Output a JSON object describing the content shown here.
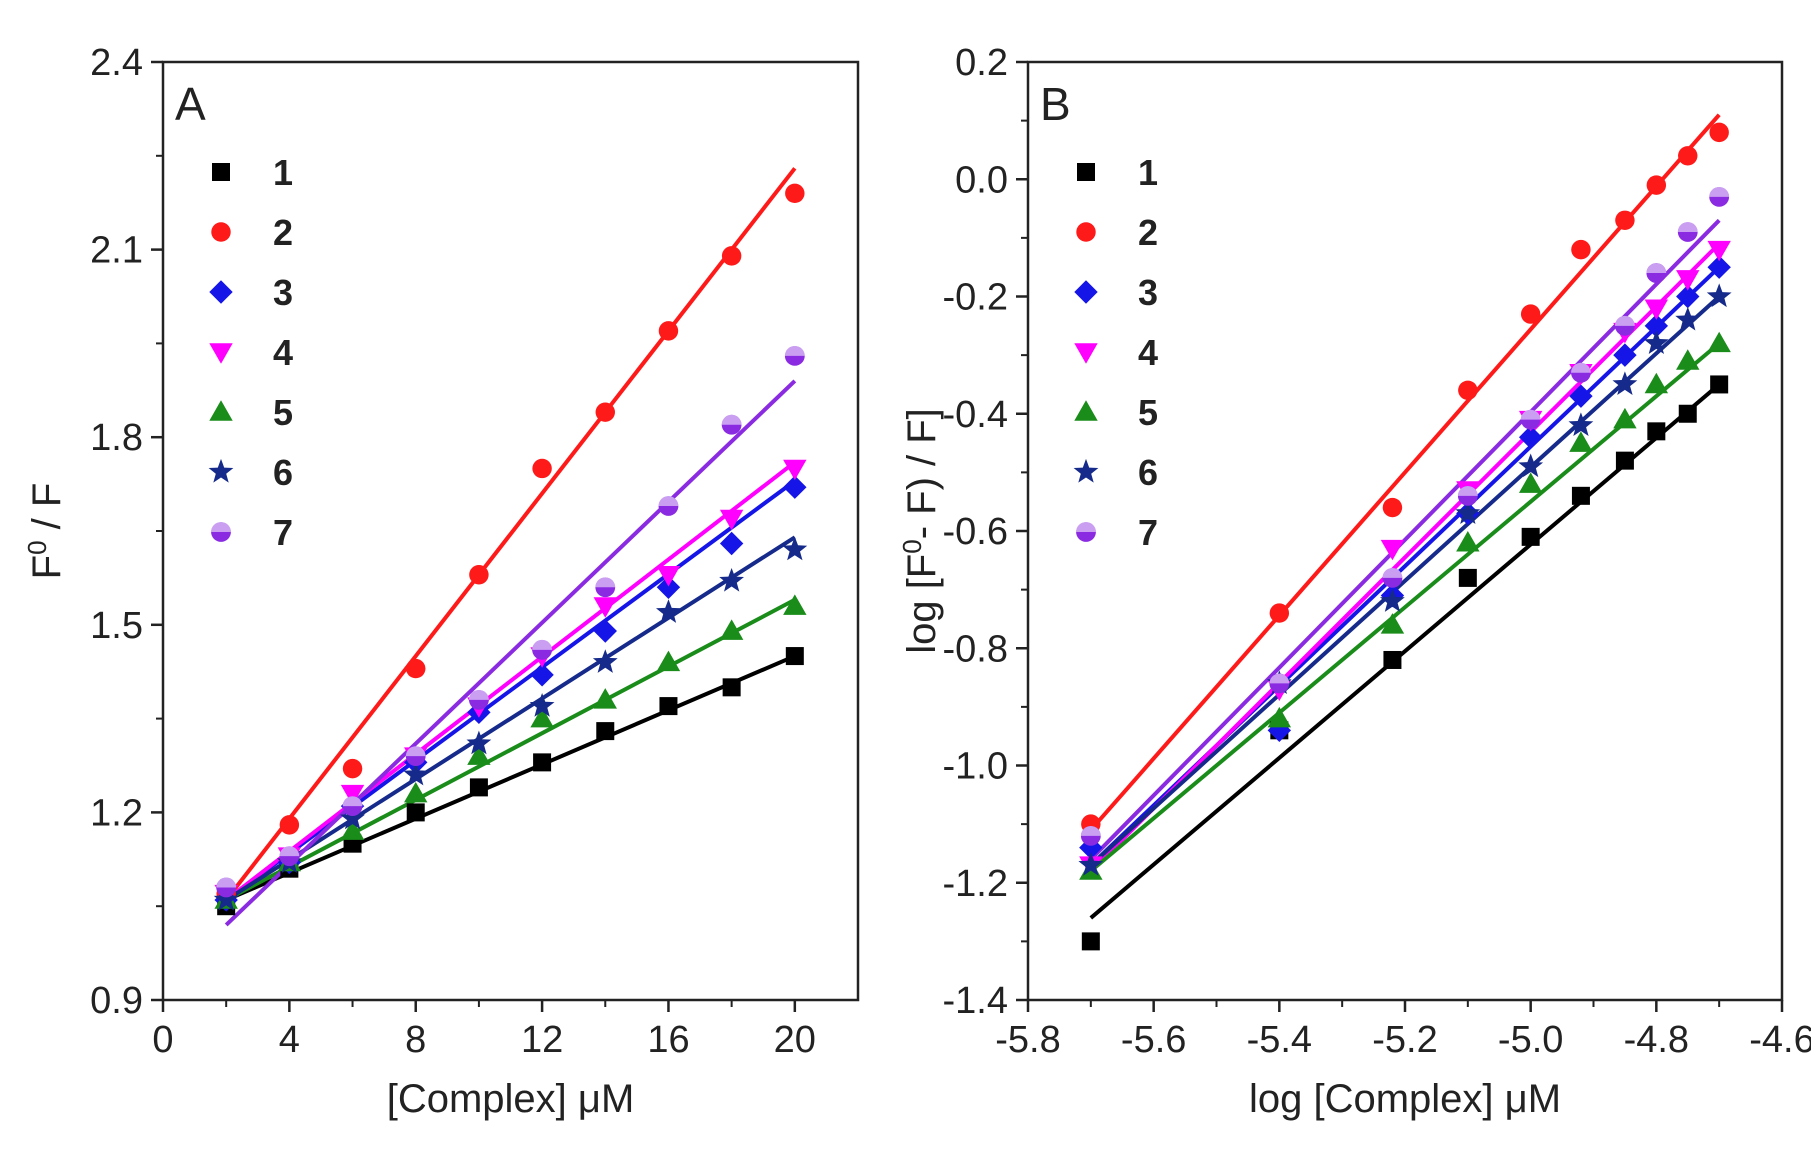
{
  "colors": {
    "1": "#000000",
    "2": "#ff1a1a",
    "3": "#1515e8",
    "4": "#ff00ff",
    "5": "#1a8c1a",
    "6": "#152a8a",
    "7": "#8a2be2"
  },
  "chart_data": [
    {
      "type": "scatter",
      "panel": "A",
      "xlabel": "[Complex] μM",
      "ylabel_main": "F",
      "ylabel_sup": "0",
      "ylabel_tail": " / F",
      "xlim": [
        0,
        22
      ],
      "ylim": [
        0.9,
        2.4
      ],
      "xticks": [
        0,
        4,
        8,
        12,
        16,
        20
      ],
      "yticks": [
        0.9,
        1.2,
        1.5,
        1.8,
        2.1,
        2.4
      ],
      "ytick_labels": [
        "0.9",
        "1.2",
        "1.5",
        "1.8",
        "2.1",
        "2.4"
      ],
      "grid": false,
      "legend_position": "top-left",
      "x": [
        2,
        4,
        6,
        8,
        10,
        12,
        14,
        16,
        18,
        20
      ],
      "series": [
        {
          "name": "1",
          "marker": "square",
          "values": [
            1.05,
            1.11,
            1.15,
            1.2,
            1.24,
            1.28,
            1.33,
            1.37,
            1.4,
            1.45
          ],
          "fit": [
            1.06,
            1.45
          ]
        },
        {
          "name": "2",
          "marker": "circle",
          "values": [
            1.07,
            1.18,
            1.27,
            1.43,
            1.58,
            1.75,
            1.84,
            1.97,
            2.09,
            2.19
          ],
          "fit": [
            1.06,
            2.23
          ]
        },
        {
          "name": "3",
          "marker": "diamond",
          "values": [
            1.06,
            1.12,
            1.21,
            1.28,
            1.36,
            1.42,
            1.49,
            1.56,
            1.63,
            1.72
          ],
          "fit": [
            1.06,
            1.73
          ]
        },
        {
          "name": "4",
          "marker": "triangle-down",
          "values": [
            1.07,
            1.13,
            1.23,
            1.29,
            1.37,
            1.45,
            1.53,
            1.58,
            1.67,
            1.75
          ],
          "fit": [
            1.06,
            1.76
          ]
        },
        {
          "name": "5",
          "marker": "triangle-up",
          "values": [
            1.06,
            1.12,
            1.17,
            1.23,
            1.29,
            1.35,
            1.38,
            1.44,
            1.49,
            1.53
          ],
          "fit": [
            1.06,
            1.54
          ]
        },
        {
          "name": "6",
          "marker": "star",
          "values": [
            1.06,
            1.12,
            1.19,
            1.26,
            1.31,
            1.37,
            1.44,
            1.52,
            1.57,
            1.62
          ],
          "fit": [
            1.06,
            1.64
          ]
        },
        {
          "name": "7",
          "marker": "sphere",
          "values": [
            1.08,
            1.13,
            1.21,
            1.29,
            1.38,
            1.46,
            1.56,
            1.69,
            1.82,
            1.93
          ],
          "fit": [
            1.02,
            1.89
          ]
        }
      ]
    },
    {
      "type": "scatter",
      "panel": "B",
      "xlabel": "log [Complex] μM",
      "ylabel_main": "log [F",
      "ylabel_sup": "0",
      "ylabel_tail": "- F) / F]",
      "xlim": [
        -5.8,
        -4.6
      ],
      "ylim": [
        -1.4,
        0.2
      ],
      "xticks": [
        -5.8,
        -5.6,
        -5.4,
        -5.2,
        -5.0,
        -4.8,
        -4.6
      ],
      "xtick_labels": [
        "-5.8",
        "-5.6",
        "-5.4",
        "-5.2",
        "-5.0",
        "-4.8",
        "-4.6"
      ],
      "yticks": [
        -1.4,
        -1.2,
        -1.0,
        -0.8,
        -0.6,
        -0.4,
        -0.2,
        0.0,
        0.2
      ],
      "ytick_labels": [
        "-1.4",
        "-1.2",
        "-1.0",
        "-0.8",
        "-0.6",
        "-0.4",
        "-0.2",
        "0.0",
        "0.2"
      ],
      "grid": false,
      "legend_position": "top-left",
      "x": [
        -5.7,
        -5.4,
        -5.22,
        -5.1,
        -5.0,
        -4.92,
        -4.85,
        -4.8,
        -4.75,
        -4.7
      ],
      "series": [
        {
          "name": "1",
          "marker": "square",
          "values": [
            -1.3,
            -0.94,
            -0.82,
            -0.68,
            -0.61,
            -0.54,
            -0.48,
            -0.43,
            -0.4,
            -0.35
          ],
          "fit": [
            -1.26,
            -0.35
          ]
        },
        {
          "name": "2",
          "marker": "circle",
          "values": [
            -1.1,
            -0.74,
            -0.56,
            -0.36,
            -0.23,
            -0.12,
            -0.07,
            -0.01,
            0.04,
            0.08
          ],
          "fit": [
            -1.11,
            0.11
          ]
        },
        {
          "name": "3",
          "marker": "diamond",
          "values": [
            -1.14,
            -0.94,
            -0.71,
            -0.57,
            -0.44,
            -0.37,
            -0.3,
            -0.25,
            -0.2,
            -0.15
          ],
          "fit": [
            -1.17,
            -0.15
          ]
        },
        {
          "name": "4",
          "marker": "triangle-down",
          "values": [
            -1.17,
            -0.87,
            -0.63,
            -0.53,
            -0.41,
            -0.33,
            -0.26,
            -0.22,
            -0.17,
            -0.12
          ],
          "fit": [
            -1.18,
            -0.11
          ]
        },
        {
          "name": "5",
          "marker": "triangle-up",
          "values": [
            -1.18,
            -0.92,
            -0.76,
            -0.62,
            -0.52,
            -0.45,
            -0.41,
            -0.35,
            -0.31,
            -0.28
          ],
          "fit": [
            -1.18,
            -0.28
          ]
        },
        {
          "name": "6",
          "marker": "star",
          "values": [
            -1.17,
            -0.86,
            -0.72,
            -0.57,
            -0.49,
            -0.42,
            -0.35,
            -0.28,
            -0.24,
            -0.2
          ],
          "fit": [
            -1.17,
            -0.2
          ]
        },
        {
          "name": "7",
          "marker": "sphere",
          "values": [
            -1.12,
            -0.86,
            -0.68,
            -0.54,
            -0.41,
            -0.33,
            -0.25,
            -0.16,
            -0.09,
            -0.03
          ],
          "fit": [
            -1.16,
            -0.07
          ]
        }
      ]
    }
  ]
}
